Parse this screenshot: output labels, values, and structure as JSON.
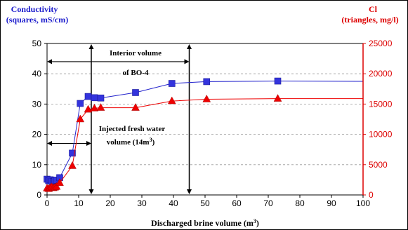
{
  "chart_data": {
    "type": "line",
    "left_title_line1": "Conductivity",
    "left_title_line2": "(squares, mS/cm)",
    "right_title_line1": "Cl",
    "right_title_line2": "(triangles, mg/l)",
    "xlabel": "Discharged brine volume (m",
    "xlabel_sup": "3",
    "xlabel_end": ")",
    "xlim": [
      0,
      100
    ],
    "ylim_left": [
      0,
      50
    ],
    "ylim_right": [
      0,
      25000
    ],
    "x_ticks": [
      "0",
      "10",
      "20",
      "30",
      "40",
      "50",
      "60",
      "70",
      "80",
      "90",
      "100"
    ],
    "y_left_ticks": [
      "0",
      "10",
      "20",
      "30",
      "40",
      "50"
    ],
    "y_right_ticks": [
      "0",
      "5000",
      "10000",
      "15000",
      "20000",
      "25000"
    ],
    "grid": "horizontal",
    "colors": {
      "conductivity": "#2222cc",
      "marker_conductivity": "#3333dd",
      "chloride": "#ee0000",
      "right_axis": "#dd0000",
      "left_axis_title": "#1a1acc"
    },
    "series": [
      {
        "axis": "left",
        "marker": "square",
        "x": [
          0,
          0.5,
          1,
          1.5,
          2,
          2.5,
          3,
          4,
          8,
          10.5,
          13,
          15,
          17,
          28,
          39.5,
          50.5,
          73
        ],
        "y": [
          5.2,
          4.7,
          5.0,
          4.5,
          4.4,
          4.7,
          4.9,
          5.7,
          13.8,
          30.2,
          32.5,
          32.1,
          32.0,
          33.8,
          36.8,
          37.4,
          37.6
        ],
        "line_x": [
          0,
          0.5,
          1,
          1.5,
          2,
          2.5,
          3,
          4,
          8,
          10.5,
          13,
          15,
          17,
          28,
          39.5,
          50.5,
          73,
          100
        ],
        "line_y": [
          5.2,
          4.7,
          5.0,
          4.5,
          4.4,
          4.7,
          4.9,
          5.7,
          13.8,
          30.2,
          32.5,
          32.1,
          32.0,
          33.8,
          36.8,
          37.4,
          37.6,
          37.5
        ]
      },
      {
        "axis": "right",
        "marker": "triangle",
        "x": [
          0,
          0.5,
          1,
          1.5,
          2,
          2.5,
          3,
          4,
          8,
          10.5,
          13,
          15,
          17,
          28,
          39.5,
          50.5,
          73
        ],
        "y": [
          1100,
          1000,
          1200,
          1300,
          1150,
          1250,
          1350,
          2000,
          4800,
          12500,
          14100,
          14300,
          14400,
          14400,
          15500,
          15800,
          15900
        ],
        "line_x": [
          0,
          0.5,
          1,
          1.5,
          2,
          2.5,
          3,
          4,
          8,
          10.5,
          13,
          15,
          17,
          28,
          39.5,
          50.5,
          73,
          100
        ],
        "line_y": [
          1100,
          1000,
          1200,
          1300,
          1150,
          1250,
          1350,
          2000,
          4800,
          12500,
          14100,
          14300,
          14400,
          14400,
          15500,
          15800,
          15900,
          15900
        ]
      }
    ],
    "annotations": {
      "interior_line1": "Interior volume",
      "interior_line2": "of BO-4",
      "interior_range_x": [
        0,
        45
      ],
      "interior_y": 44,
      "injected_line1": "Injected fresh water",
      "injected_line2": "volume (14m",
      "injected_sup": "3",
      "injected_end": ")",
      "injected_range_x": [
        0,
        14
      ],
      "injected_y": 17,
      "vertical_lines_x": [
        14,
        45
      ]
    }
  }
}
